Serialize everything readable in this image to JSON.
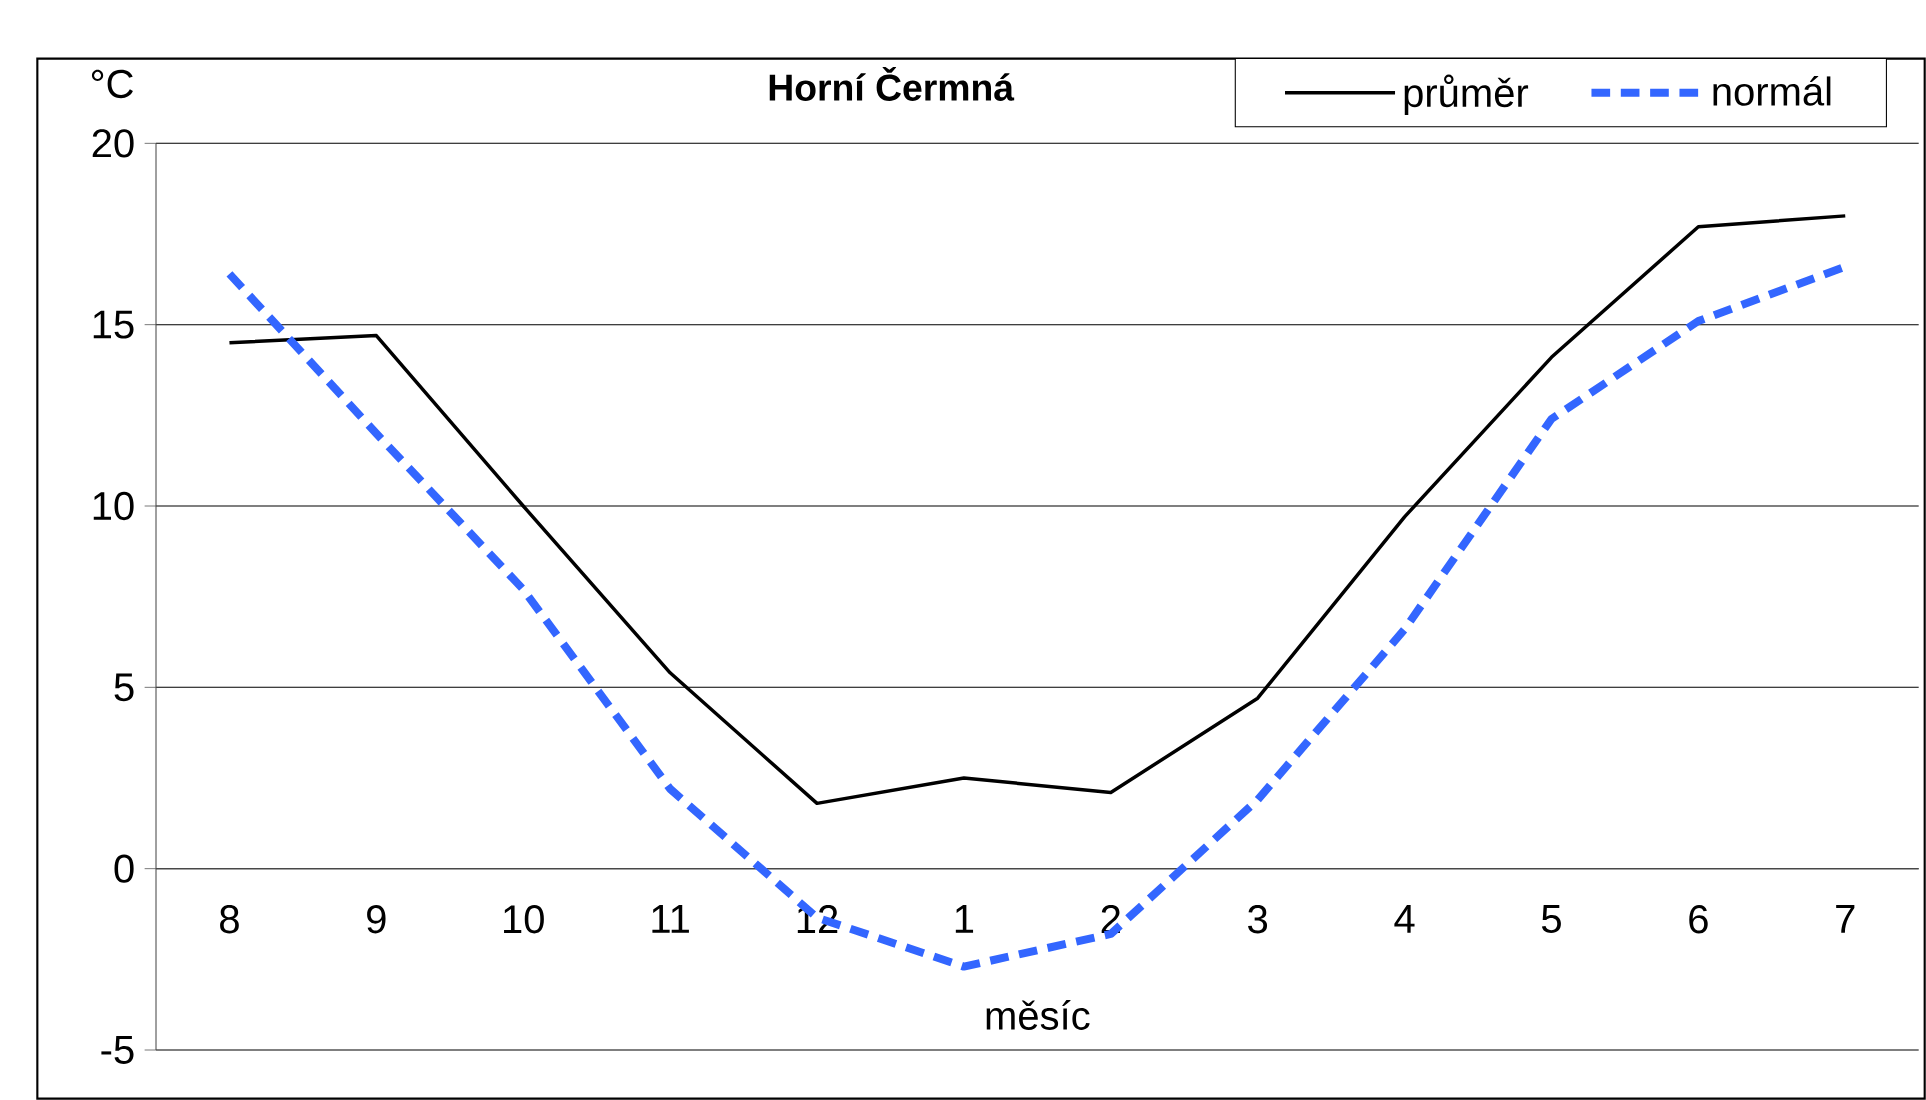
{
  "chart_data": {
    "type": "line",
    "title": "Horní Čermná",
    "xlabel": "měsíc",
    "ylabel": "°C",
    "categories": [
      "8",
      "9",
      "10",
      "11",
      "12",
      "1",
      "2",
      "3",
      "4",
      "5",
      "6",
      "7"
    ],
    "series": [
      {
        "name": "průměr",
        "color": "#000000",
        "line_style": "solid",
        "values": [
          14.5,
          14.7,
          10.0,
          5.4,
          1.8,
          2.5,
          2.1,
          4.7,
          9.7,
          14.1,
          17.7,
          18.0
        ]
      },
      {
        "name": "normál",
        "color": "#3366ff",
        "line_style": "dashed",
        "values": [
          16.4,
          12.0,
          7.7,
          2.2,
          -1.35,
          -2.7,
          -1.8,
          1.9,
          6.6,
          12.4,
          15.1,
          16.6
        ]
      }
    ],
    "ylim": [
      -5,
      20
    ],
    "yticks": [
      -5,
      0,
      5,
      10,
      15,
      20
    ],
    "grid": "y",
    "legend": "top right",
    "marker": "none"
  }
}
